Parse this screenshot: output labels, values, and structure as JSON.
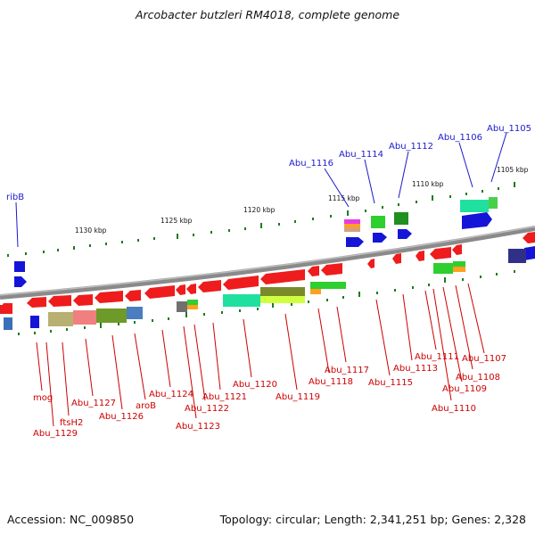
{
  "title": "Arcobacter butzleri RM4018, complete genome",
  "footer": {
    "accession": "Accession: NC_009850",
    "topology": "Topology: circular; Length: 2,341,251 bp; Genes: 2,328"
  },
  "colors": {
    "label_forward": "#1a1acc",
    "label_reverse": "#cc0000",
    "tick": "#1f7a1f",
    "backbone": "#8a8a8a"
  },
  "scale_labels": [
    "1130 kbp",
    "1125 kbp",
    "1120 kbp",
    "1115 kbp",
    "1110 kbp",
    "1105 kbp"
  ],
  "forward_labels": [
    "ribB",
    "Abu_1116",
    "Abu_1114",
    "Abu_1112",
    "Abu_1106",
    "Abu_1105"
  ],
  "reverse_labels": [
    "mog",
    "Abu_1129",
    "ftsH2",
    "Abu_1127",
    "Abu_1126",
    "aroB",
    "Abu_1124",
    "Abu_1123",
    "Abu_1122",
    "Abu_1121",
    "Abu_1120",
    "Abu_1119",
    "Abu_1118",
    "Abu_1117",
    "Abu_1115",
    "Abu_1113",
    "Abu_1111",
    "Abu_1110",
    "Abu_1109",
    "Abu_1108",
    "Abu_1107"
  ]
}
